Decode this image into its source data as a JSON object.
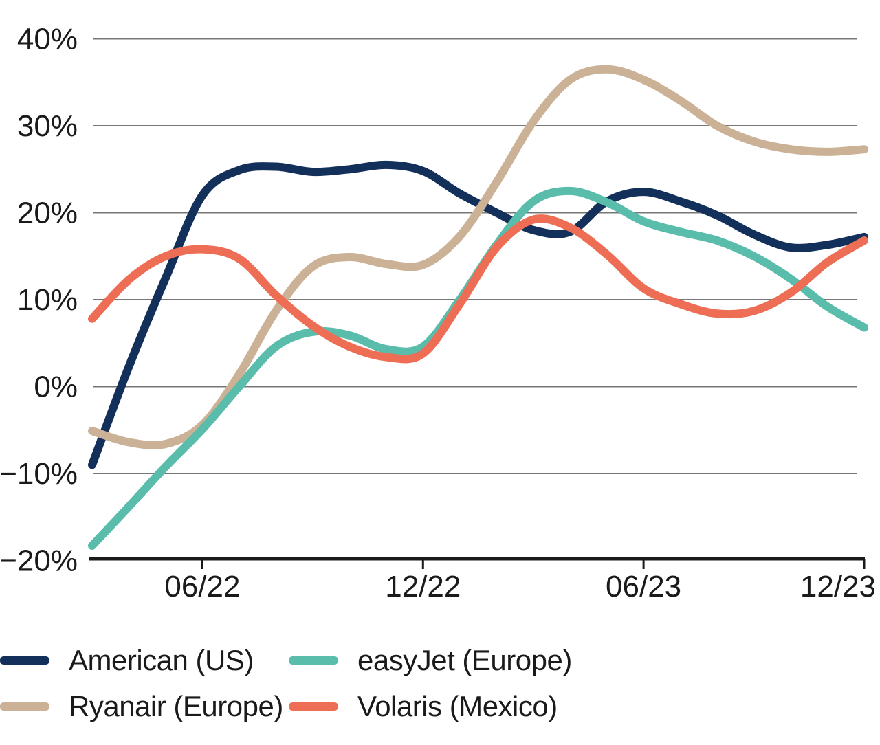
{
  "chart_data": {
    "type": "line",
    "title": "",
    "xlabel": "",
    "ylabel": "",
    "x": [
      "03/22",
      "04/22",
      "05/22",
      "06/22",
      "07/22",
      "08/22",
      "09/22",
      "10/22",
      "11/22",
      "12/22",
      "01/23",
      "02/23",
      "03/23",
      "04/23",
      "05/23",
      "06/23",
      "07/23",
      "08/23",
      "09/23",
      "10/23",
      "11/23",
      "12/23"
    ],
    "x_tick_labels": [
      "06/22",
      "12/22",
      "06/23",
      "12/23"
    ],
    "y_tick_labels": [
      "40%",
      "30%",
      "20%",
      "10%",
      "0%",
      "−10%",
      "−20%"
    ],
    "y_tick_values": [
      40,
      30,
      20,
      10,
      0,
      -10,
      -20
    ],
    "ylim": [
      -20,
      40
    ],
    "grid": "horizontal",
    "legend_position": "bottom",
    "series": [
      {
        "name": "American (US)",
        "color": "#12305a",
        "values": [
          -9.0,
          2.3,
          12.5,
          22.0,
          24.9,
          25.3,
          24.7,
          25.0,
          25.5,
          24.8,
          22.2,
          20.0,
          18.0,
          17.8,
          21.3,
          22.4,
          21.3,
          19.7,
          17.5,
          16.0,
          16.3,
          17.2
        ]
      },
      {
        "name": "Ryanair (Europe)",
        "color": "#cbb196",
        "values": [
          -5.1,
          -6.4,
          -6.6,
          -4.4,
          1.4,
          8.7,
          13.8,
          14.9,
          14.1,
          14.0,
          17.3,
          23.5,
          30.5,
          35.3,
          36.5,
          35.3,
          32.9,
          30.0,
          28.2,
          27.3,
          27.0,
          27.3
        ]
      },
      {
        "name": "easyJet (Europe)",
        "color": "#5abcab",
        "values": [
          -18.3,
          -13.8,
          -9.2,
          -4.9,
          0.0,
          4.6,
          6.3,
          5.9,
          4.3,
          4.6,
          10.0,
          16.3,
          21.3,
          22.5,
          21.2,
          19.0,
          17.8,
          16.8,
          15.0,
          12.4,
          9.2,
          6.8
        ]
      },
      {
        "name": "Volaris (Mexico)",
        "color": "#ed6e55",
        "values": [
          7.8,
          12.3,
          15.0,
          15.8,
          14.7,
          10.5,
          7.0,
          4.6,
          3.4,
          3.8,
          9.5,
          16.0,
          19.2,
          18.3,
          15.2,
          11.3,
          9.5,
          8.4,
          8.7,
          10.8,
          14.3,
          16.8
        ]
      }
    ],
    "axis_color": "#1a1a1a",
    "gridline_color": "#777777"
  },
  "legend": {
    "order_note": "two columns: American/Ryanair left, easyJet/Volaris right"
  }
}
